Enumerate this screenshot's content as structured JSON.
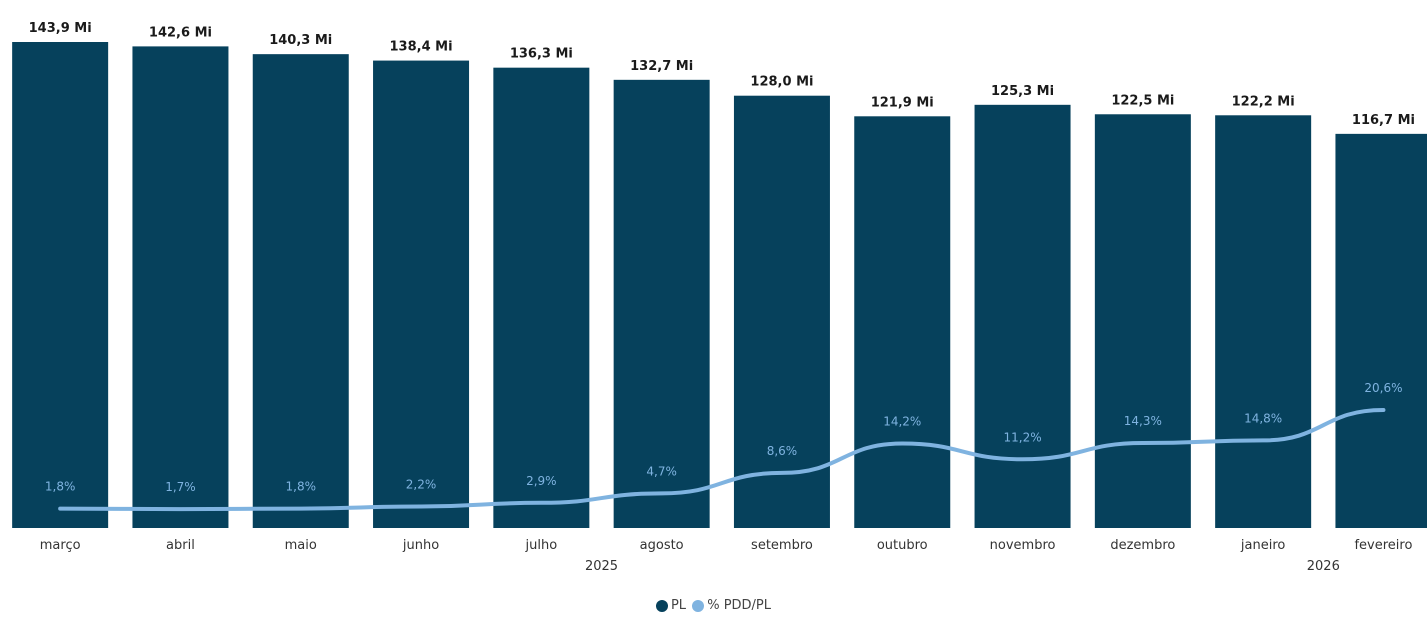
{
  "chart_data": {
    "type": "bar",
    "categories": [
      "março",
      "abril",
      "maio",
      "junho",
      "julho",
      "agosto",
      "setembro",
      "outubro",
      "novembro",
      "dezembro",
      "janeiro",
      "fevereiro"
    ],
    "years": [
      {
        "label": "2025",
        "from": 0,
        "to": 9
      },
      {
        "label": "2026",
        "from": 10,
        "to": 11
      }
    ],
    "series": [
      {
        "name": "PL",
        "kind": "bar",
        "color": "#06415c",
        "values": [
          143.9,
          142.6,
          140.3,
          138.4,
          136.3,
          132.7,
          128.0,
          121.9,
          125.3,
          122.5,
          122.2,
          116.7
        ],
        "labels": [
          "143,9 Mi",
          "142,6 Mi",
          "140,3 Mi",
          "138,4 Mi",
          "136,3 Mi",
          "132,7 Mi",
          "128,0 Mi",
          "121,9 Mi",
          "125,3 Mi",
          "122,5 Mi",
          "122,2 Mi",
          "116,7 Mi"
        ]
      },
      {
        "name": "% PDD/PL",
        "kind": "line",
        "color": "#7fb3e0",
        "values": [
          1.8,
          1.7,
          1.8,
          2.2,
          2.9,
          4.7,
          8.6,
          14.2,
          11.2,
          14.3,
          14.8,
          20.6
        ],
        "labels": [
          "1,8%",
          "1,7%",
          "1,8%",
          "2,2%",
          "2,9%",
          "4,7%",
          "8,6%",
          "14,2%",
          "11,2%",
          "14,3%",
          "14,8%",
          "20,6%"
        ]
      }
    ],
    "bar_ylim": [
      0,
      143.9
    ],
    "line_ylim": [
      0,
      70
    ],
    "legend_position": "bottom-center",
    "grid": false
  }
}
